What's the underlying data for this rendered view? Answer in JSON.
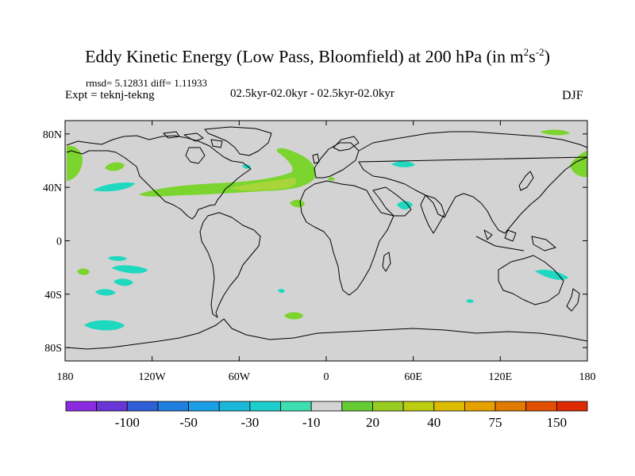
{
  "title": {
    "main": "Eddy Kinetic Energy (Low Pass, Bloomfield) at 200 hPa (in m",
    "sup1": "2",
    "mid": "s",
    "sup2": "-2",
    "close": ")"
  },
  "stats": "rmsd= 5.12831 diff= 1.11933",
  "expt": "Expt = teknj-tekng",
  "period": "02.5kyr-02.0kyr - 02.5kyr-02.0kyr",
  "season": "DJF",
  "map": {
    "land_color": "#d3d3d3",
    "coast_color": "#000000",
    "lat_ticks": [
      {
        "value": 80,
        "label": "80N"
      },
      {
        "value": 40,
        "label": "40N"
      },
      {
        "value": 0,
        "label": "0"
      },
      {
        "value": -40,
        "label": "40S"
      },
      {
        "value": -80,
        "label": "80S"
      }
    ],
    "lon_ticks": [
      {
        "value": -180,
        "label": "180"
      },
      {
        "value": -120,
        "label": "120W"
      },
      {
        "value": -60,
        "label": "60W"
      },
      {
        "value": 0,
        "label": "0"
      },
      {
        "value": 60,
        "label": "60E"
      },
      {
        "value": 120,
        "label": "120E"
      },
      {
        "value": 180,
        "label": "180"
      }
    ]
  },
  "colorbar": {
    "colors": [
      "#8a2be2",
      "#6a35d8",
      "#2f5fd6",
      "#1e7fe0",
      "#1a9ee6",
      "#19b8d9",
      "#1ccfcc",
      "#3ddfb0",
      "#d3d3d3",
      "#66cc33",
      "#99cc22",
      "#bbcc11",
      "#ddbb00",
      "#e6a000",
      "#e07a00",
      "#e05000",
      "#dd2a00"
    ],
    "labels": [
      {
        "boundary": 2,
        "text": "-100"
      },
      {
        "boundary": 4,
        "text": "-50"
      },
      {
        "boundary": 6,
        "text": "-30"
      },
      {
        "boundary": 8,
        "text": "-10"
      },
      {
        "boundary": 10,
        "text": "20"
      },
      {
        "boundary": 12,
        "text": "40"
      },
      {
        "boundary": 14,
        "text": "75"
      },
      {
        "boundary": 16,
        "text": "150"
      }
    ]
  }
}
